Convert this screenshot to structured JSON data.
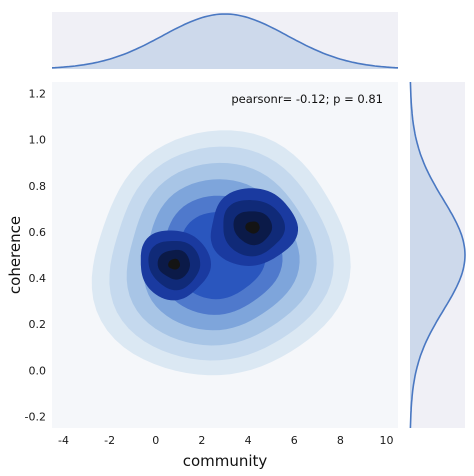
{
  "chart_data": {
    "type": "kde-jointplot",
    "xlabel": "community",
    "ylabel": "coherence",
    "annotation": "pearsonr= -0.12; p = 0.81",
    "xlim": [
      -4.5,
      10.5
    ],
    "ylim": [
      -0.25,
      1.25
    ],
    "xticks": [
      -4,
      -2,
      0,
      2,
      4,
      6,
      8,
      10
    ],
    "yticks": [
      -0.2,
      0.0,
      0.2,
      0.4,
      0.6,
      0.8,
      1.0,
      1.2
    ],
    "grid": false,
    "density_peaks": [
      {
        "x": 0.8,
        "y": 0.46
      },
      {
        "x": 4.2,
        "y": 0.62
      }
    ],
    "marginal_x": {
      "peak_x": 3.0,
      "extent": [
        -4.5,
        10.5
      ]
    },
    "marginal_y": {
      "peak_y": 0.5,
      "extent": [
        -0.25,
        1.25
      ]
    },
    "colors": {
      "panel_bg": "#f5f7fa",
      "marginal_bg": "#f0f0f6",
      "marginal_line": "#4a78c2",
      "marginal_fill": "#c9d6ea",
      "contour_levels": [
        "#dbe8f3",
        "#c5d9ee",
        "#a8c5e6",
        "#7ea5db",
        "#4f79cc",
        "#2a56be",
        "#1a3aa0",
        "#102a78",
        "#0b1a48",
        "#141414"
      ]
    }
  }
}
